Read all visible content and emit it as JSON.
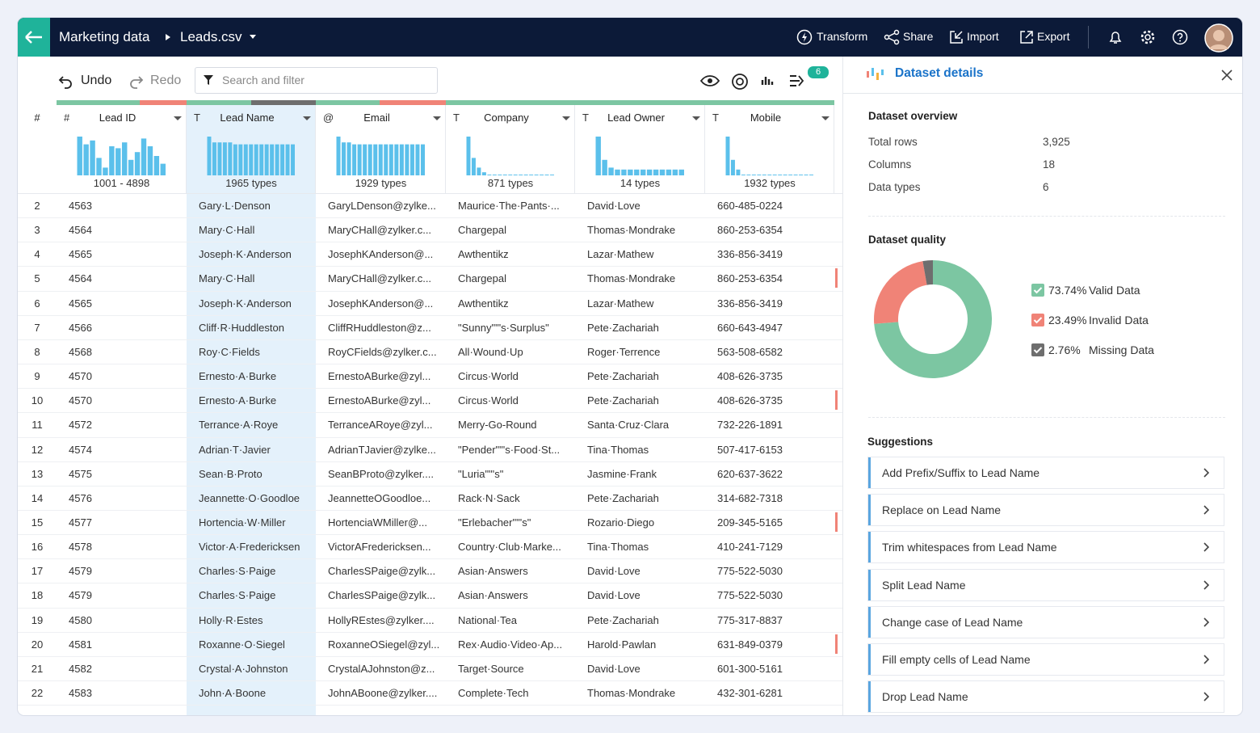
{
  "header": {
    "breadcrumb": [
      "Marketing data",
      "Leads.csv"
    ],
    "actions": [
      "Transform",
      "Share",
      "Import",
      "Export"
    ]
  },
  "toolbar": {
    "undo": "Undo",
    "redo": "Redo",
    "search_placeholder": "Search and filter",
    "badge": "6"
  },
  "grid": {
    "row_header": "#",
    "histogram_color": "#5bc0eb",
    "selected_column": 1,
    "columns": [
      {
        "type_icon": "#",
        "name": "Lead ID",
        "summary": "1001 - 4898",
        "quality": [
          64,
          36,
          0
        ],
        "histogram": [
          100,
          80,
          90,
          45,
          20,
          75,
          70,
          85,
          40,
          60,
          95,
          75,
          50,
          30
        ]
      },
      {
        "type_icon": "T",
        "name": "Lead Name",
        "summary": "1965 types",
        "quality": [
          50,
          0,
          50
        ],
        "histogram": [
          100,
          85,
          85,
          85,
          85,
          80,
          80,
          80,
          80,
          80,
          80,
          80,
          80,
          80,
          80,
          80,
          80
        ]
      },
      {
        "type_icon": "@",
        "name": "Email",
        "summary": "1929 types",
        "quality": [
          49,
          51,
          0
        ],
        "histogram": [
          100,
          85,
          85,
          80,
          80,
          80,
          80,
          80,
          80,
          80,
          80,
          80,
          80,
          80,
          80,
          80,
          80
        ]
      },
      {
        "type_icon": "T",
        "name": "Company",
        "summary": "871 types",
        "quality": [
          100,
          0,
          0
        ],
        "histogram": [
          100,
          45,
          20,
          8,
          2,
          2,
          2,
          2,
          2,
          2,
          2,
          2,
          2,
          2,
          2,
          2,
          2
        ]
      },
      {
        "type_icon": "T",
        "name": "Lead Owner",
        "summary": "14 types",
        "quality": [
          100,
          0,
          0
        ],
        "histogram": [
          100,
          40,
          20,
          15,
          15,
          15,
          15,
          15,
          15,
          15,
          15,
          15,
          15,
          15
        ]
      },
      {
        "type_icon": "T",
        "name": "Mobile",
        "summary": "1932 types",
        "quality": [
          100,
          0,
          0
        ],
        "histogram": [
          100,
          40,
          15,
          2,
          2,
          2,
          2,
          2,
          2,
          2,
          2,
          2,
          2,
          2,
          2,
          2,
          2
        ]
      }
    ],
    "rows": [
      {
        "num": "2",
        "cells": [
          "4563",
          "Gary·L·Denson",
          "GaryLDenson@zylke...",
          "Maurice·The·Pants·...",
          "David·Love",
          "660-485-0224"
        ],
        "flagged": false
      },
      {
        "num": "3",
        "cells": [
          "4564",
          "Mary·C·Hall",
          "MaryCHall@zylker.c...",
          "Chargepal",
          "Thomas·Mondrake",
          "860-253-6354"
        ],
        "flagged": false
      },
      {
        "num": "4",
        "cells": [
          "4565",
          "Joseph·K·Anderson",
          "JosephKAnderson@...",
          "Awthentikz",
          "Lazar·Mathew",
          "336-856-3419"
        ],
        "flagged": false
      },
      {
        "num": "5",
        "cells": [
          "4564",
          "Mary·C·Hall",
          "MaryCHall@zylker.c...",
          "Chargepal",
          "Thomas·Mondrake",
          "860-253-6354"
        ],
        "flagged": true
      },
      {
        "num": "6",
        "cells": [
          "4565",
          "Joseph·K·Anderson",
          "JosephKAnderson@...",
          "Awthentikz",
          "Lazar·Mathew",
          "336-856-3419"
        ],
        "flagged": false
      },
      {
        "num": "7",
        "cells": [
          "4566",
          "Cliff·R·Huddleston",
          "CliffRHuddleston@z...",
          "\"Sunny\"\"'s·Surplus\"",
          "Pete·Zachariah",
          "660-643-4947"
        ],
        "flagged": false
      },
      {
        "num": "8",
        "cells": [
          "4568",
          "Roy·C·Fields",
          "RoyCFields@zylker.c...",
          "All·Wound·Up",
          "Roger·Terrence",
          "563-508-6582"
        ],
        "flagged": false
      },
      {
        "num": "9",
        "cells": [
          "4570",
          "Ernesto·A·Burke",
          "ErnestoABurke@zyl...",
          "Circus·World",
          "Pete·Zachariah",
          "408-626-3735"
        ],
        "flagged": false
      },
      {
        "num": "10",
        "cells": [
          "4570",
          "Ernesto·A·Burke",
          "ErnestoABurke@zyl...",
          "Circus·World",
          "Pete·Zachariah",
          "408-626-3735"
        ],
        "flagged": true
      },
      {
        "num": "11",
        "cells": [
          "4572",
          "Terrance·A·Roye",
          "TerranceARoye@zyl...",
          "Merry-Go-Round",
          "Santa·Cruz·Clara",
          "732-226-1891"
        ],
        "flagged": false
      },
      {
        "num": "12",
        "cells": [
          "4574",
          "Adrian·T·Javier",
          "AdrianTJavier@zylke...",
          "\"Pender\"\"'s·Food·St...",
          "Tina·Thomas",
          "507-417-6153"
        ],
        "flagged": false
      },
      {
        "num": "13",
        "cells": [
          "4575",
          "Sean·B·Proto",
          "SeanBProto@zylker....",
          "\"Luria\"\"'s\"",
          "Jasmine·Frank",
          "620-637-3622"
        ],
        "flagged": false
      },
      {
        "num": "14",
        "cells": [
          "4576",
          "Jeannette·O·Goodloe",
          "JeannetteOGoodloe...",
          "Rack·N·Sack",
          "Pete·Zachariah",
          "314-682-7318"
        ],
        "flagged": false
      },
      {
        "num": "15",
        "cells": [
          "4577",
          "Hortencia·W·Miller",
          "HortenciaWMiller@...",
          "\"Erlebacher\"\"'s\"",
          "Rozario·Diego",
          "209-345-5165"
        ],
        "flagged": true
      },
      {
        "num": "16",
        "cells": [
          "4578",
          "Victor·A·Fredericksen",
          "VictorAFredericksen...",
          "Country·Club·Marke...",
          "Tina·Thomas",
          "410-241-7129"
        ],
        "flagged": false
      },
      {
        "num": "17",
        "cells": [
          "4579",
          "Charles·S·Paige",
          "CharlesSPaige@zylk...",
          "Asian·Answers",
          "David·Love",
          "775-522-5030"
        ],
        "flagged": false
      },
      {
        "num": "18",
        "cells": [
          "4579",
          "Charles·S·Paige",
          "CharlesSPaige@zylk...",
          "Asian·Answers",
          "David·Love",
          "775-522-5030"
        ],
        "flagged": false
      },
      {
        "num": "19",
        "cells": [
          "4580",
          "Holly·R·Estes",
          "HollyREstes@zylker....",
          "National·Tea",
          "Pete·Zachariah",
          "775-317-8837"
        ],
        "flagged": false
      },
      {
        "num": "20",
        "cells": [
          "4581",
          "Roxanne·O·Siegel",
          "RoxanneOSiegel@zyl...",
          "Rex·Audio·Video·Ap...",
          "Harold·Pawlan",
          "631-849-0379"
        ],
        "flagged": true
      },
      {
        "num": "21",
        "cells": [
          "4582",
          "Crystal·A·Johnston",
          "CrystalAJohnston@z...",
          "Target·Source",
          "David·Love",
          "601-300-5161"
        ],
        "flagged": false
      },
      {
        "num": "22",
        "cells": [
          "4583",
          "John·A·Boone",
          "JohnABoone@zylker....",
          "Complete·Tech",
          "Thomas·Mondrake",
          "432-301-6281"
        ],
        "flagged": false
      }
    ]
  },
  "panel": {
    "title": "Dataset details",
    "overview": {
      "title": "Dataset overview",
      "items": [
        {
          "label": "Total rows",
          "value": "3,925"
        },
        {
          "label": "Columns",
          "value": "18"
        },
        {
          "label": "Data types",
          "value": "6"
        }
      ]
    },
    "quality": {
      "title": "Dataset quality",
      "segments": [
        {
          "name": "Valid Data",
          "value": 73.74,
          "value_label": "73.74%",
          "color": "#7cc6a2"
        },
        {
          "name": "Invalid Data",
          "value": 23.49,
          "value_label": "23.49%",
          "color": "#f08377"
        },
        {
          "name": "Missing Data",
          "value": 2.76,
          "value_label": "2.76%",
          "color": "#6e6e6e"
        }
      ]
    },
    "suggestions": {
      "title": "Suggestions",
      "items": [
        "Add Prefix/Suffix to Lead Name",
        "Replace on Lead Name",
        "Trim whitespaces from Lead Name",
        "Split Lead Name",
        "Change case of Lead Name",
        "Fill empty cells of Lead Name",
        "Drop Lead Name"
      ]
    }
  }
}
